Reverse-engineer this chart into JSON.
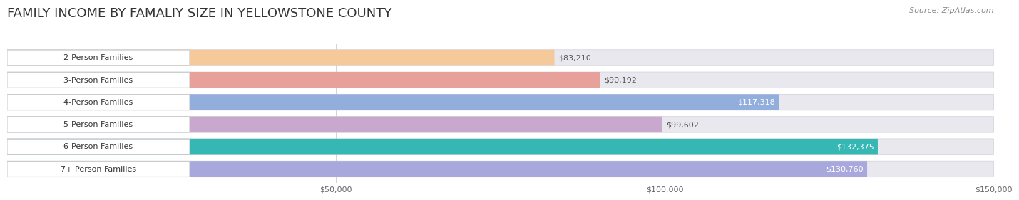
{
  "title": "FAMILY INCOME BY FAMALIY SIZE IN YELLOWSTONE COUNTY",
  "source": "Source: ZipAtlas.com",
  "categories": [
    "2-Person Families",
    "3-Person Families",
    "4-Person Families",
    "5-Person Families",
    "6-Person Families",
    "7+ Person Families"
  ],
  "values": [
    83210,
    90192,
    117318,
    99602,
    132375,
    130760
  ],
  "bar_colors": [
    "#F5C99A",
    "#E8A09A",
    "#92AEDD",
    "#C8A8CC",
    "#35B8B4",
    "#A8A8DC"
  ],
  "bar_bg_color": "#E8E8EE",
  "label_colors": [
    "#555555",
    "#555555",
    "#ffffff",
    "#555555",
    "#ffffff",
    "#ffffff"
  ],
  "xmax": 150000,
  "xtick_labels": [
    "$50,000",
    "$100,000",
    "$150,000"
  ],
  "xtick_vals": [
    50000,
    100000,
    150000
  ],
  "background_color": "#ffffff",
  "title_fontsize": 13,
  "bar_fontsize": 8.0,
  "value_fontsize": 8.0,
  "source_fontsize": 8.0
}
